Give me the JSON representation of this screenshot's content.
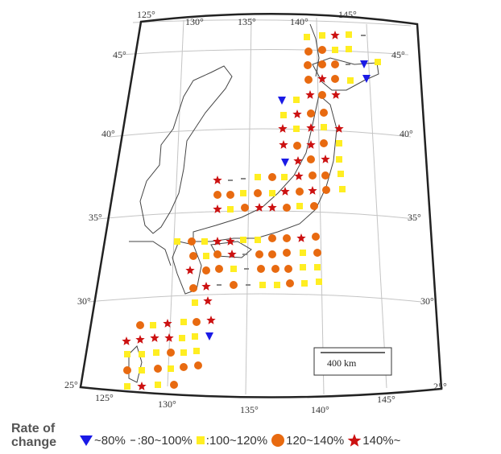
{
  "map": {
    "lon_ticks_top": [
      "125°",
      "130°",
      "135°",
      "140°",
      "145°"
    ],
    "lon_ticks_bottom": [
      "125°",
      "130°",
      "135°",
      "140°",
      "145°"
    ],
    "lat_ticks_left": [
      "45°",
      "40°",
      "35°",
      "30°",
      "25°"
    ],
    "lat_ticks_right": [
      "45°",
      "40°",
      "35°",
      "30°",
      "25°"
    ],
    "scale_bar": "400 km"
  },
  "legend": {
    "title": "Rate of change",
    "items": [
      {
        "symbol": "down-triangle",
        "color": "#1a1ae6",
        "label": "~80%"
      },
      {
        "symbol": "dash",
        "color": "#888888",
        "label": ":80~100%"
      },
      {
        "symbol": "square",
        "color": "#ffee22",
        "label": ":100~120%"
      },
      {
        "symbol": "circle",
        "color": "#e86a10",
        "label": "120~140%"
      },
      {
        "symbol": "star",
        "color": "#cc1111",
        "label": "140%~"
      }
    ]
  },
  "colors": {
    "triangle": "#1a1ae6",
    "dash": "#888888",
    "square": "#ffee22",
    "circle": "#e86a10",
    "star": "#cc1111"
  }
}
